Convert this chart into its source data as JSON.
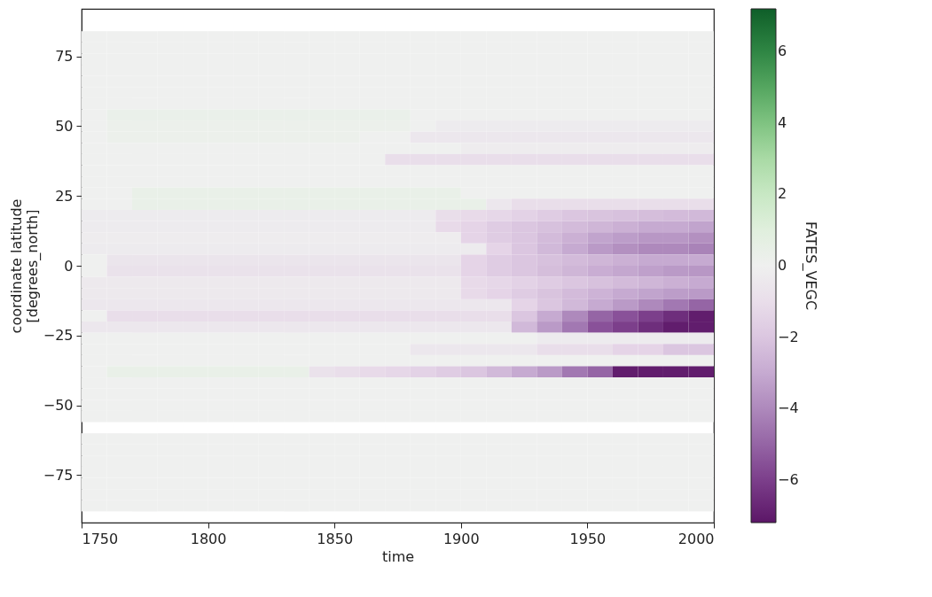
{
  "chart_data": {
    "type": "heatmap",
    "xlabel": "time",
    "ylabel": "coordinate latitude\n[degrees_north]",
    "clabel": "FATES_VEGC",
    "xlim": [
      1750,
      2000
    ],
    "xticks": [
      1750,
      1800,
      1850,
      1900,
      1950,
      2000
    ],
    "ylim": [
      -92,
      92
    ],
    "yticks": [
      -75,
      -50,
      -25,
      0,
      25,
      50,
      75
    ],
    "clim": [
      -7.2,
      7.2
    ],
    "cticks": [
      -6,
      -4,
      -2,
      0,
      2,
      4,
      6
    ],
    "x": [
      1755,
      1765,
      1775,
      1785,
      1795,
      1805,
      1815,
      1825,
      1835,
      1845,
      1855,
      1865,
      1875,
      1885,
      1895,
      1905,
      1915,
      1925,
      1935,
      1945,
      1955,
      1965,
      1975,
      1985,
      1995
    ],
    "y": [
      82,
      78,
      74,
      70,
      66,
      62,
      58,
      54,
      50,
      46,
      42,
      38,
      34,
      30,
      26,
      22,
      18,
      14,
      10,
      6,
      2,
      -2,
      -6,
      -10,
      -14,
      -18,
      -22,
      -26,
      -30,
      -34,
      -38,
      -42,
      -46,
      -50,
      -54,
      -62,
      -66,
      -70,
      -74,
      -78,
      -82,
      -86
    ],
    "cells": [
      [
        0,
        0,
        0,
        0,
        0,
        0,
        0,
        0,
        0,
        0,
        0,
        0,
        0,
        0,
        0,
        0,
        0,
        0,
        0,
        0,
        0,
        0,
        0,
        0,
        0
      ],
      [
        0,
        0,
        0,
        0,
        0,
        0,
        0,
        0,
        0,
        0,
        0,
        0,
        0,
        0,
        0,
        0,
        0,
        0,
        0,
        0,
        0,
        0,
        0,
        0,
        0
      ],
      [
        0,
        0,
        0,
        0,
        0,
        0,
        0,
        0,
        0,
        0,
        0,
        0,
        0,
        0,
        0,
        0,
        0,
        0,
        0,
        0,
        0,
        0,
        0,
        0,
        0
      ],
      [
        0,
        0,
        0,
        0,
        0,
        0,
        0,
        0,
        0,
        0,
        0,
        0,
        0,
        0,
        0,
        0,
        0,
        0,
        0,
        0,
        0,
        0,
        0,
        0,
        0
      ],
      [
        0,
        0,
        0,
        0,
        0,
        0,
        0,
        0,
        0,
        0,
        0,
        0,
        0,
        0,
        0,
        0,
        0,
        0,
        0,
        0,
        0,
        0,
        0,
        0,
        0
      ],
      [
        0,
        0,
        0,
        0,
        0,
        0,
        0,
        0,
        0,
        0,
        0,
        0,
        0,
        0,
        0,
        0,
        0,
        0,
        0,
        0,
        0,
        0,
        0,
        0,
        0
      ],
      [
        0,
        0,
        0,
        0,
        0,
        0,
        0,
        0,
        0,
        0,
        0,
        0,
        0,
        0,
        0,
        0,
        0,
        0,
        0,
        0,
        0,
        0,
        0,
        0,
        0
      ],
      [
        0,
        0.3,
        0.3,
        0.3,
        0.3,
        0.3,
        0.3,
        0.3,
        0.3,
        0.3,
        0.3,
        0.3,
        0.3,
        0,
        0,
        0,
        0,
        0,
        0,
        0,
        0,
        0,
        0,
        0,
        0
      ],
      [
        0,
        0.2,
        0.2,
        0.2,
        0.2,
        0.2,
        0.2,
        0.2,
        0.2,
        0.2,
        0.2,
        0.2,
        0.2,
        0,
        -0.3,
        -0.3,
        -0.3,
        -0.3,
        -0.3,
        -0.3,
        -0.3,
        -0.3,
        -0.3,
        -0.3,
        -0.3
      ],
      [
        0,
        0.2,
        0.2,
        0.2,
        0.2,
        0.2,
        0.2,
        0.2,
        0.2,
        0.2,
        0.2,
        0,
        0,
        -0.5,
        -0.5,
        -0.5,
        -0.5,
        -0.5,
        -0.5,
        -0.5,
        -0.5,
        -0.5,
        -0.5,
        -0.5,
        -0.5
      ],
      [
        0,
        0,
        0,
        0,
        0,
        0,
        0,
        0,
        0,
        0,
        0,
        0,
        0,
        0,
        0,
        -0.2,
        -0.2,
        -0.2,
        -0.2,
        -0.2,
        -0.2,
        -0.2,
        -0.2,
        -0.2,
        -0.2
      ],
      [
        0,
        0,
        0,
        0,
        0,
        0,
        0,
        0,
        0,
        0,
        0,
        0,
        -1,
        -1,
        -1,
        -1,
        -1,
        -1,
        -1,
        -1,
        -1,
        -1,
        -1,
        -1,
        -1
      ],
      [
        0,
        0,
        0,
        0,
        0,
        0,
        0,
        0,
        0,
        0,
        0,
        0,
        0,
        0,
        0,
        0,
        0,
        0,
        0,
        0,
        0,
        0,
        0,
        0,
        0
      ],
      [
        0,
        0,
        0,
        0,
        0,
        0,
        0,
        0,
        0,
        0,
        0,
        0,
        0,
        0,
        0,
        0,
        0,
        0,
        0,
        0,
        0,
        0,
        0,
        0,
        0
      ],
      [
        0,
        0,
        0.4,
        0.4,
        0.4,
        0.4,
        0.4,
        0.4,
        0.4,
        0.4,
        0.4,
        0.4,
        0.4,
        0.4,
        0.4,
        0,
        0,
        0,
        0,
        0,
        0,
        0,
        0,
        0,
        0
      ],
      [
        0,
        0,
        0.4,
        0.4,
        0.4,
        0.4,
        0.4,
        0.4,
        0.4,
        0.4,
        0.4,
        0.4,
        0.4,
        0.4,
        0.4,
        0.4,
        -0.5,
        -1,
        -1,
        -1,
        -1,
        -1,
        -1,
        -1,
        -1
      ],
      [
        -0.3,
        -0.3,
        -0.3,
        -0.3,
        -0.3,
        -0.3,
        -0.3,
        -0.3,
        -0.3,
        -0.3,
        -0.3,
        -0.3,
        -0.3,
        -0.3,
        -1,
        -1.2,
        -1.4,
        -1.6,
        -1.8,
        -2,
        -2.1,
        -2.2,
        -2.3,
        -2.4,
        -2.5
      ],
      [
        -0.3,
        -0.3,
        -0.3,
        -0.3,
        -0.3,
        -0.3,
        -0.3,
        -0.3,
        -0.3,
        -0.3,
        -0.3,
        -0.3,
        -0.3,
        -0.3,
        -1.2,
        -1.5,
        -1.8,
        -2,
        -2.2,
        -2.4,
        -2.6,
        -2.8,
        -3,
        -3,
        -3.2
      ],
      [
        -0.2,
        -0.2,
        -0.2,
        -0.2,
        -0.2,
        -0.2,
        -0.2,
        -0.2,
        -0.2,
        -0.2,
        -0.2,
        -0.2,
        -0.2,
        -0.2,
        -0.2,
        -1.5,
        -1.8,
        -2,
        -2.4,
        -2.8,
        -3.2,
        -3.4,
        -3.6,
        -3.6,
        -3.8
      ],
      [
        -0.3,
        -0.3,
        -0.3,
        -0.3,
        -0.3,
        -0.3,
        -0.3,
        -0.3,
        -0.3,
        -0.3,
        -0.3,
        -0.3,
        -0.3,
        -0.3,
        -0.3,
        -0.3,
        -1.5,
        -2,
        -2.5,
        -3,
        -3.5,
        -3.8,
        -4,
        -4,
        -4.2
      ],
      [
        0,
        -0.6,
        -0.6,
        -0.6,
        -0.6,
        -0.6,
        -0.6,
        -0.6,
        -0.6,
        -0.6,
        -0.6,
        -0.6,
        -0.6,
        -0.6,
        -0.6,
        -1.5,
        -1.8,
        -2,
        -2.2,
        -2.4,
        -2.6,
        -2.8,
        -3,
        -3,
        -3
      ],
      [
        0,
        -0.8,
        -0.8,
        -0.8,
        -0.8,
        -0.8,
        -0.8,
        -0.8,
        -0.8,
        -0.8,
        -0.8,
        -0.8,
        -0.8,
        -0.8,
        -0.8,
        -1.5,
        -1.8,
        -2,
        -2.3,
        -2.6,
        -2.9,
        -3.1,
        -3.3,
        -3.5,
        -3.6
      ],
      [
        -0.4,
        -0.4,
        -0.4,
        -0.4,
        -0.4,
        -0.4,
        -0.4,
        -0.4,
        -0.4,
        -0.4,
        -0.4,
        -0.4,
        -0.4,
        -0.4,
        -0.4,
        -1.2,
        -1.4,
        -1.6,
        -1.8,
        -2,
        -2.2,
        -2.4,
        -2.6,
        -2.8,
        -3
      ],
      [
        -0.4,
        -0.4,
        -0.4,
        -0.4,
        -0.4,
        -0.4,
        -0.4,
        -0.4,
        -0.4,
        -0.4,
        -0.4,
        -0.4,
        -0.4,
        -0.4,
        -0.4,
        -1.2,
        -1.5,
        -1.8,
        -2.1,
        -2.4,
        -2.7,
        -3,
        -3.2,
        -3.4,
        -3.5
      ],
      [
        -0.5,
        -0.5,
        -0.5,
        -0.5,
        -0.5,
        -0.5,
        -0.5,
        -0.5,
        -0.5,
        -0.5,
        -0.5,
        -0.5,
        -0.5,
        -0.5,
        -0.5,
        -0.5,
        -0.5,
        -1.5,
        -2,
        -2.5,
        -3,
        -3.5,
        -4,
        -4.5,
        -5
      ],
      [
        0,
        -1,
        -1,
        -1,
        -1,
        -1,
        -1,
        -1,
        -1,
        -1,
        -1,
        -1,
        -1,
        -1,
        -1,
        -1,
        -1,
        -2,
        -3,
        -4,
        -5,
        -5.5,
        -6,
        -6.5,
        -7
      ],
      [
        -0.5,
        -0.5,
        -0.5,
        -0.5,
        -0.5,
        -0.5,
        -0.5,
        -0.5,
        -0.5,
        -0.5,
        -0.5,
        -0.5,
        -0.5,
        -0.5,
        -0.5,
        -0.5,
        -0.5,
        -2.5,
        -3.5,
        -4.5,
        -5.5,
        -6,
        -6.5,
        -7,
        -7
      ],
      [
        0,
        0,
        0,
        0,
        0,
        0,
        0,
        0,
        0,
        0,
        0,
        0,
        0,
        0,
        0,
        0,
        0,
        0,
        -0.3,
        -0.3,
        -0.3,
        -0.3,
        -0.3,
        -0.3,
        -0.3
      ],
      [
        0,
        0,
        0,
        0,
        0,
        0,
        0,
        0,
        0,
        0,
        0,
        0,
        0,
        -0.5,
        -0.5,
        -0.5,
        -0.5,
        -0.5,
        -1,
        -1,
        -1,
        -1.5,
        -1.5,
        -2,
        -2
      ],
      [
        0,
        0,
        0,
        0,
        0,
        0,
        0,
        0,
        0,
        0,
        0,
        0,
        0,
        0,
        0,
        0,
        0,
        0,
        0,
        0,
        0,
        0,
        0,
        0,
        0
      ],
      [
        0,
        0.4,
        0.4,
        0.4,
        0.4,
        0.4,
        0.4,
        0.4,
        0.4,
        -0.8,
        -1,
        -1.2,
        -1.4,
        -1.6,
        -1.8,
        -2,
        -2.5,
        -3,
        -3.5,
        -4.5,
        -5,
        -7,
        -7,
        -7,
        -7
      ],
      [
        0,
        0,
        0,
        0,
        0,
        0,
        0,
        0,
        0,
        0,
        0,
        0,
        0,
        0,
        0,
        0,
        0,
        0,
        0,
        0,
        0,
        0,
        0,
        0,
        0
      ],
      [
        0,
        0,
        0,
        0,
        0,
        0,
        0,
        0,
        0,
        0,
        0,
        0,
        0,
        0,
        0,
        0,
        0,
        0,
        0,
        0,
        0,
        0,
        0,
        0,
        0
      ],
      [
        0,
        0,
        0,
        0,
        0,
        0,
        0,
        0,
        0,
        0,
        0,
        0,
        0,
        0,
        0,
        0,
        0,
        0,
        0,
        0,
        0,
        0,
        0,
        0,
        0
      ],
      [
        0,
        0,
        0,
        0,
        0,
        0,
        0,
        0,
        0,
        0,
        0,
        0,
        0,
        0,
        0,
        0,
        0,
        0,
        0,
        0,
        0,
        0,
        0,
        0,
        0
      ],
      [
        0,
        0,
        0,
        0,
        0,
        0,
        0,
        0,
        0,
        0,
        0,
        0,
        0,
        0,
        0,
        0,
        0,
        0,
        0,
        0,
        0,
        0,
        0,
        0,
        0
      ],
      [
        0,
        0,
        0,
        0,
        0,
        0,
        0,
        0,
        0,
        0,
        0,
        0,
        0,
        0,
        0,
        0,
        0,
        0,
        0,
        0,
        0,
        0,
        0,
        0,
        0
      ],
      [
        0,
        0,
        0,
        0,
        0,
        0,
        0,
        0,
        0,
        0,
        0,
        0,
        0,
        0,
        0,
        0,
        0,
        0,
        0,
        0,
        0,
        0,
        0,
        0,
        0
      ],
      [
        0,
        0,
        0,
        0,
        0,
        0,
        0,
        0,
        0,
        0,
        0,
        0,
        0,
        0,
        0,
        0,
        0,
        0,
        0,
        0,
        0,
        0,
        0,
        0,
        0
      ],
      [
        0,
        0,
        0,
        0,
        0,
        0,
        0,
        0,
        0,
        0,
        0,
        0,
        0,
        0,
        0,
        0,
        0,
        0,
        0,
        0,
        0,
        0,
        0,
        0,
        0
      ],
      [
        0,
        0,
        0,
        0,
        0,
        0,
        0,
        0,
        0,
        0,
        0,
        0,
        0,
        0,
        0,
        0,
        0,
        0,
        0,
        0,
        0,
        0,
        0,
        0,
        0
      ],
      [
        0,
        0,
        0,
        0,
        0,
        0,
        0,
        0,
        0,
        0,
        0,
        0,
        0,
        0,
        0,
        0,
        0,
        0,
        0,
        0,
        0,
        0,
        0,
        0,
        0
      ]
    ]
  }
}
